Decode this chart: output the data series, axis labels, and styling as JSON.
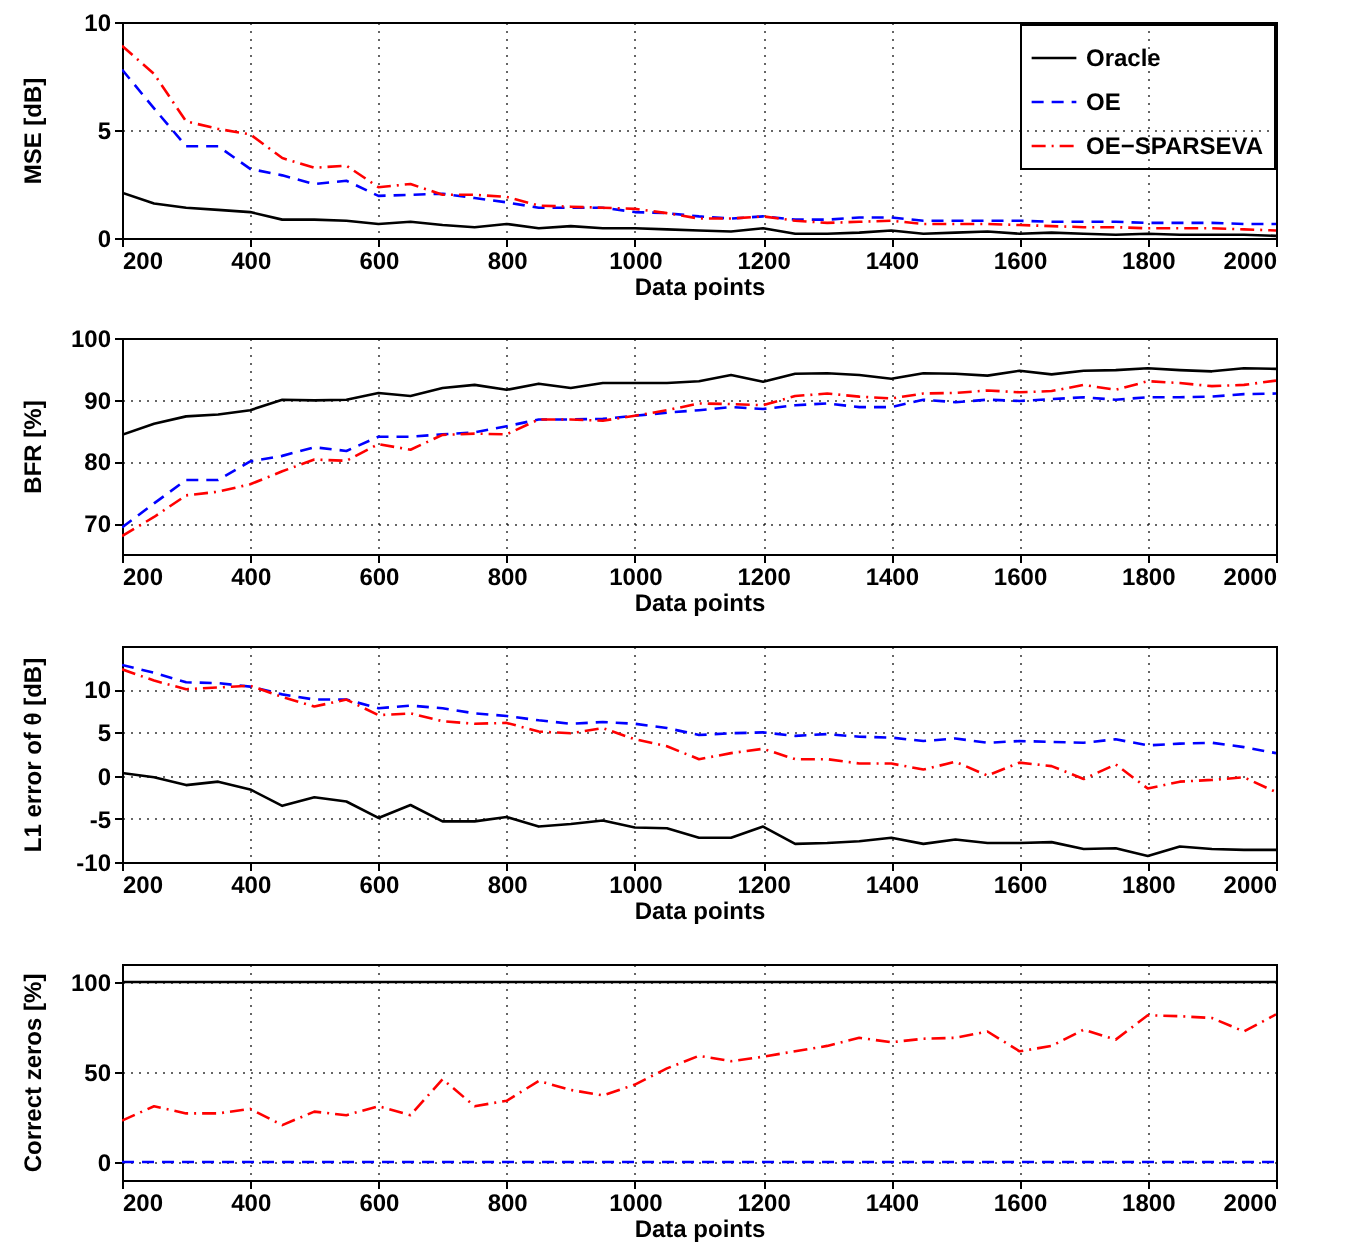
{
  "chart_data": [
    {
      "type": "line",
      "xlabel": "Data points",
      "ylabel": "MSE [dB]",
      "x": [
        200,
        250,
        300,
        350,
        400,
        450,
        500,
        550,
        600,
        650,
        700,
        750,
        800,
        850,
        900,
        950,
        1000,
        1050,
        1100,
        1150,
        1200,
        1250,
        1300,
        1350,
        1400,
        1450,
        1500,
        1550,
        1600,
        1650,
        1700,
        1750,
        1800,
        1850,
        1900,
        1950,
        2000
      ],
      "xlim": [
        200,
        2000
      ],
      "xticks": [
        200,
        400,
        600,
        800,
        1000,
        1200,
        1400,
        1600,
        1800,
        2000
      ],
      "ylim": [
        0,
        10
      ],
      "yticks": [
        0,
        5,
        10
      ],
      "grid": true,
      "legend": "top right",
      "series": [
        {
          "name": "Oracle",
          "color": "#000000",
          "line_style": "solid",
          "values": [
            2.1,
            1.6,
            1.4,
            1.3,
            1.2,
            0.85,
            0.85,
            0.8,
            0.65,
            0.75,
            0.6,
            0.5,
            0.65,
            0.45,
            0.55,
            0.45,
            0.45,
            0.4,
            0.35,
            0.3,
            0.45,
            0.2,
            0.2,
            0.25,
            0.35,
            0.2,
            0.25,
            0.3,
            0.2,
            0.25,
            0.2,
            0.15,
            0.2,
            0.15,
            0.15,
            0.15,
            0.1
          ]
        },
        {
          "name": "OE",
          "color": "#0000ff",
          "line_style": "dashed",
          "values": [
            7.8,
            6.0,
            4.25,
            4.25,
            3.2,
            2.9,
            2.5,
            2.65,
            1.95,
            2.0,
            2.05,
            1.85,
            1.65,
            1.4,
            1.4,
            1.4,
            1.2,
            1.15,
            1.0,
            0.9,
            1.0,
            0.85,
            0.85,
            0.95,
            0.95,
            0.8,
            0.8,
            0.8,
            0.8,
            0.75,
            0.75,
            0.75,
            0.7,
            0.7,
            0.7,
            0.65,
            0.65
          ]
        },
        {
          "name": "OE−SPARSEVA",
          "color": "#ff0000",
          "line_style": "dashdot",
          "values": [
            8.9,
            7.6,
            5.4,
            5.05,
            4.8,
            3.7,
            3.25,
            3.35,
            2.35,
            2.5,
            2.0,
            2.0,
            1.9,
            1.5,
            1.45,
            1.4,
            1.35,
            1.15,
            0.9,
            0.9,
            1.0,
            0.8,
            0.7,
            0.75,
            0.8,
            0.65,
            0.65,
            0.65,
            0.6,
            0.55,
            0.5,
            0.5,
            0.45,
            0.45,
            0.45,
            0.4,
            0.35
          ]
        }
      ]
    },
    {
      "type": "line",
      "xlabel": "Data points",
      "ylabel": "BFR [%]",
      "x": [
        200,
        250,
        300,
        350,
        400,
        450,
        500,
        550,
        600,
        650,
        700,
        750,
        800,
        850,
        900,
        950,
        1000,
        1050,
        1100,
        1150,
        1200,
        1250,
        1300,
        1350,
        1400,
        1450,
        1500,
        1550,
        1600,
        1650,
        1700,
        1750,
        1800,
        1850,
        1900,
        1950,
        2000
      ],
      "xlim": [
        200,
        2000
      ],
      "xticks": [
        200,
        400,
        600,
        800,
        1000,
        1200,
        1400,
        1600,
        1800,
        2000
      ],
      "ylim": [
        65,
        100
      ],
      "yticks": [
        70,
        80,
        90,
        100
      ],
      "grid": true,
      "series": [
        {
          "color": "#000000",
          "line_style": "solid",
          "values": [
            84.3,
            86.1,
            87.3,
            87.6,
            88.3,
            90,
            89.9,
            90,
            91.1,
            90.6,
            91.9,
            92.4,
            91.6,
            92.6,
            91.9,
            92.7,
            92.7,
            92.7,
            93,
            94,
            92.9,
            94.2,
            94.3,
            94,
            93.4,
            94.3,
            94.2,
            93.9,
            94.7,
            94.1,
            94.7,
            94.8,
            95.1,
            94.8,
            94.6,
            95.1,
            95
          ]
        },
        {
          "color": "#0000ff",
          "line_style": "dashed",
          "values": [
            69.3,
            73.2,
            77,
            77,
            80,
            80.9,
            82.3,
            81.7,
            84,
            84,
            84.4,
            84.7,
            85.7,
            86.8,
            86.8,
            86.9,
            87.4,
            87.9,
            88.3,
            88.8,
            88.5,
            89.1,
            89.4,
            88.8,
            88.8,
            90,
            89.6,
            90,
            89.8,
            90.1,
            90.4,
            90,
            90.4,
            90.4,
            90.5,
            90.9,
            91
          ]
        },
        {
          "color": "#ff0000",
          "line_style": "dashdot",
          "values": [
            67.9,
            71,
            74.5,
            75.1,
            76.3,
            78.4,
            80.3,
            80.1,
            82.8,
            81.9,
            84.3,
            84.5,
            84.4,
            86.8,
            86.8,
            86.6,
            87.4,
            88.3,
            89.4,
            89.3,
            89.1,
            90.6,
            91,
            90.5,
            90.2,
            91,
            91.1,
            91.5,
            91.2,
            91.4,
            92.4,
            91.6,
            93,
            92.7,
            92.2,
            92.4,
            93.1
          ]
        }
      ]
    },
    {
      "type": "line",
      "xlabel": "Data points",
      "ylabel": "L1 error of θ [dB]",
      "x": [
        200,
        250,
        300,
        350,
        400,
        450,
        500,
        550,
        600,
        650,
        700,
        750,
        800,
        850,
        900,
        950,
        1000,
        1050,
        1100,
        1150,
        1200,
        1250,
        1300,
        1350,
        1400,
        1450,
        1500,
        1550,
        1600,
        1650,
        1700,
        1750,
        1800,
        1850,
        1900,
        1950,
        2000
      ],
      "xlim": [
        200,
        2000
      ],
      "xticks": [
        200,
        400,
        600,
        800,
        1000,
        1200,
        1400,
        1600,
        1800,
        2000
      ],
      "ylim": [
        -10,
        15
      ],
      "yticks": [
        -10,
        -5,
        0,
        5,
        10
      ],
      "grid": true,
      "series": [
        {
          "color": "#000000",
          "line_style": "solid",
          "values": [
            0.3,
            -0.2,
            -1.1,
            -0.7,
            -1.6,
            -3.5,
            -2.5,
            -3,
            -4.9,
            -3.4,
            -5.3,
            -5.3,
            -4.8,
            -5.9,
            -5.6,
            -5.2,
            -6,
            -6.1,
            -7.2,
            -7.2,
            -5.9,
            -7.9,
            -7.8,
            -7.6,
            -7.2,
            -7.9,
            -7.4,
            -7.8,
            -7.8,
            -7.7,
            -8.5,
            -8.4,
            -9.3,
            -8.2,
            -8.5,
            -8.6,
            -8.6
          ]
        },
        {
          "color": "#0000ff",
          "line_style": "dashed",
          "values": [
            12.8,
            11.9,
            10.8,
            10.7,
            10.3,
            9.4,
            8.8,
            8.8,
            7.8,
            8.1,
            7.8,
            7.2,
            6.9,
            6.4,
            6,
            6.2,
            6,
            5.5,
            4.7,
            4.9,
            5,
            4.6,
            4.8,
            4.5,
            4.4,
            4,
            4.3,
            3.8,
            4,
            3.9,
            3.8,
            4.2,
            3.5,
            3.7,
            3.8,
            3.3,
            2.6
          ]
        },
        {
          "color": "#ff0000",
          "line_style": "dashdot",
          "values": [
            12.3,
            11,
            10,
            10.2,
            10.4,
            9.1,
            8,
            8.8,
            7,
            7.2,
            6.3,
            6,
            6.1,
            5.1,
            4.9,
            5.5,
            4.2,
            3.4,
            1.9,
            2.6,
            3.1,
            1.9,
            1.9,
            1.4,
            1.4,
            0.7,
            1.6,
            0,
            1.5,
            1.1,
            -0.4,
            1.3,
            -1.5,
            -0.7,
            -0.5,
            -0.2,
            -1.9
          ]
        }
      ]
    },
    {
      "type": "line",
      "xlabel": "Data points",
      "ylabel": "Correct zeros [%]",
      "x": [
        200,
        250,
        300,
        350,
        400,
        450,
        500,
        550,
        600,
        650,
        700,
        750,
        800,
        850,
        900,
        950,
        1000,
        1050,
        1100,
        1150,
        1200,
        1250,
        1300,
        1350,
        1400,
        1450,
        1500,
        1550,
        1600,
        1650,
        1700,
        1750,
        1800,
        1850,
        1900,
        1950,
        2000
      ],
      "xlim": [
        200,
        2000
      ],
      "xticks": [
        200,
        400,
        600,
        800,
        1000,
        1200,
        1400,
        1600,
        1800,
        2000
      ],
      "ylim": [
        -10,
        110
      ],
      "yticks": [
        0,
        50,
        100
      ],
      "grid": true,
      "series": [
        {
          "color": "#000000",
          "line_style": "solid",
          "values": [
            100,
            100,
            100,
            100,
            100,
            100,
            100,
            100,
            100,
            100,
            100,
            100,
            100,
            100,
            100,
            100,
            100,
            100,
            100,
            100,
            100,
            100,
            100,
            100,
            100,
            100,
            100,
            100,
            100,
            100,
            100,
            100,
            100,
            100,
            100,
            100,
            100
          ]
        },
        {
          "color": "#0000ff",
          "line_style": "dashed",
          "values": [
            0,
            0,
            0,
            0,
            0,
            0,
            0,
            0,
            0,
            0,
            0,
            0,
            0,
            0,
            0,
            0,
            0,
            0,
            0,
            0,
            0,
            0,
            0,
            0,
            0,
            0,
            0,
            0,
            0,
            0,
            0,
            0,
            0,
            0,
            0,
            0,
            0
          ]
        },
        {
          "color": "#ff0000",
          "line_style": "dashdot",
          "values": [
            23,
            31,
            27,
            27,
            29.5,
            20.5,
            28,
            26,
            31,
            26,
            46,
            31,
            34,
            45,
            40,
            37,
            43,
            52,
            59,
            56,
            58.5,
            61.5,
            64.5,
            69,
            66.5,
            68.5,
            69,
            72.5,
            61.5,
            64.5,
            73.5,
            68,
            81.5,
            81,
            80,
            72.5,
            82
          ]
        }
      ]
    }
  ]
}
